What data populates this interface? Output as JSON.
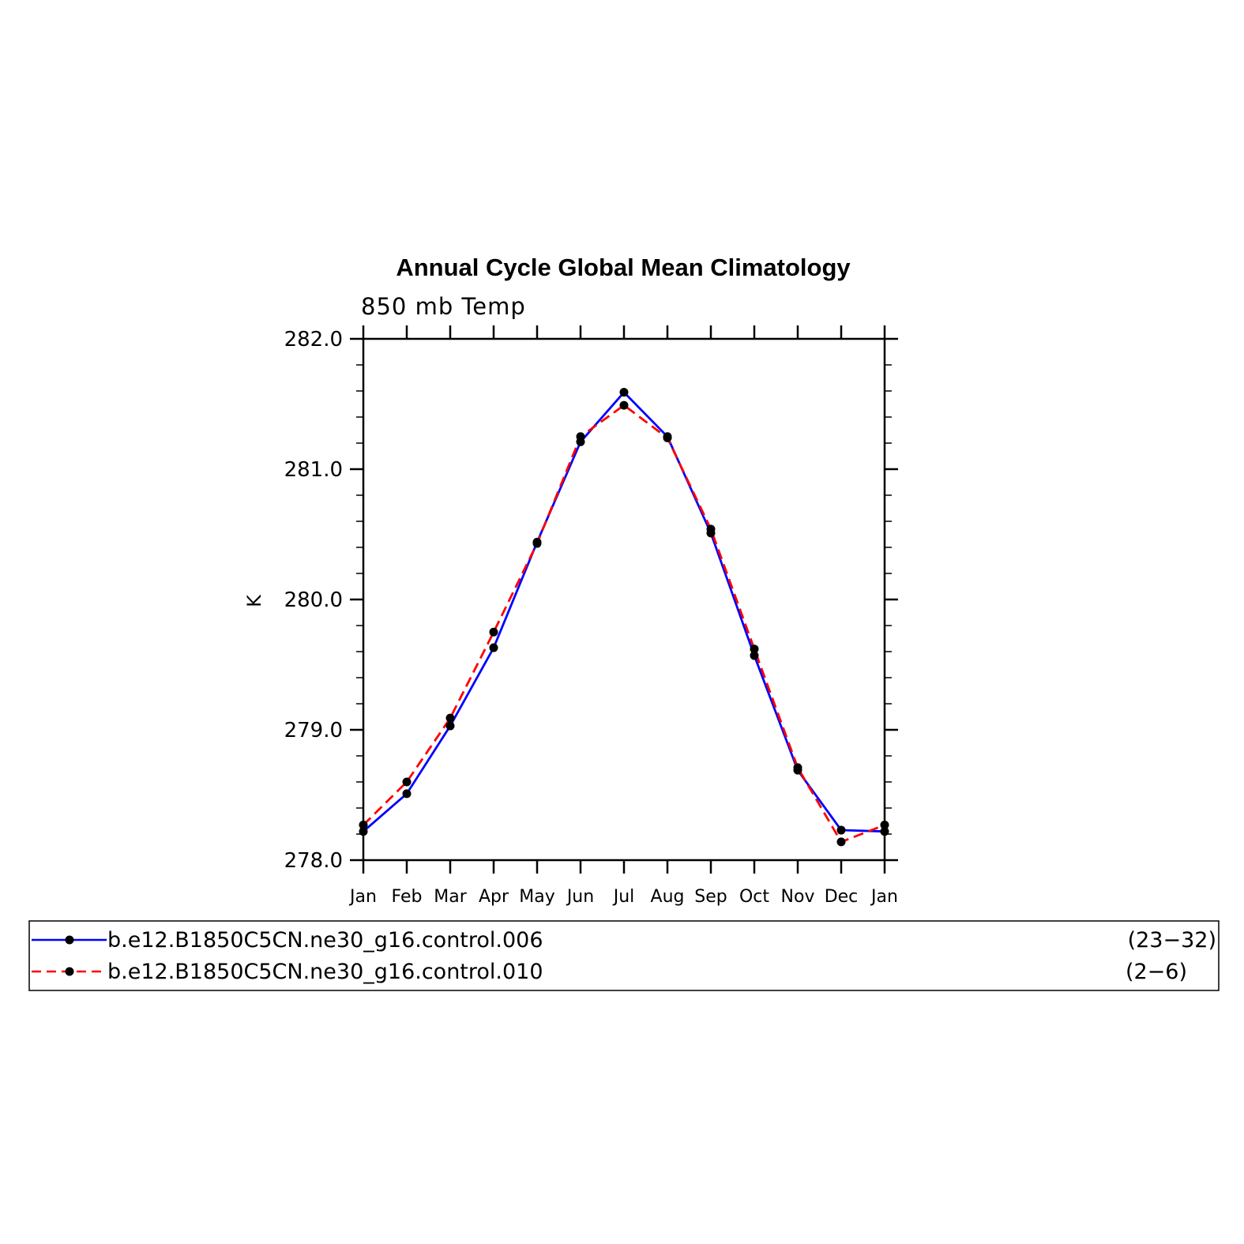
{
  "chart_data": {
    "type": "line",
    "title": "Annual Cycle Global Mean Climatology",
    "subtitle": "850 mb Temp",
    "ylabel": "K",
    "xlabel": "",
    "categories": [
      "Jan",
      "Feb",
      "Mar",
      "Apr",
      "May",
      "Jun",
      "Jul",
      "Aug",
      "Sep",
      "Oct",
      "Nov",
      "Dec",
      "Jan"
    ],
    "ylim": [
      278.0,
      282.0
    ],
    "yticks": [
      "278.0",
      "279.0",
      "280.0",
      "281.0",
      "282.0"
    ],
    "grid": false,
    "legend_position": "bottom",
    "series": [
      {
        "name": "b.e12.B1850C5CN.ne30_g16.control.006",
        "years": "(23−32)",
        "color": "#0000ff",
        "style": "solid",
        "values": [
          278.22,
          278.51,
          279.03,
          279.63,
          280.44,
          281.21,
          281.59,
          281.25,
          280.51,
          279.57,
          278.69,
          278.23,
          278.22
        ]
      },
      {
        "name": "b.e12.B1850C5CN.ne30_g16.control.010",
        "years": "(2−6)",
        "color": "#ff0000",
        "style": "dashed",
        "values": [
          278.27,
          278.6,
          279.09,
          279.75,
          280.43,
          281.25,
          281.49,
          281.24,
          280.54,
          279.62,
          278.71,
          278.14,
          278.27
        ]
      }
    ]
  }
}
